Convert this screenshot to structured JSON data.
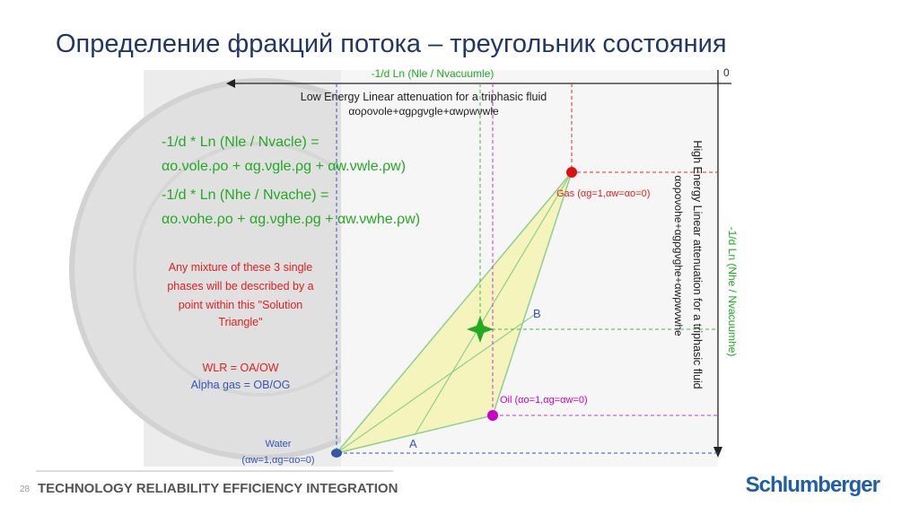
{
  "header": {
    "title": "Определение фракций потока – треугольник состояния"
  },
  "diagram": {
    "top_axis_label": "-1/d Ln (Nle / Nvacuumle)",
    "origin": "0",
    "low_energy_title": "Low Energy Linear attenuation for a triphasic fluid",
    "low_energy_formula": "αoρoνole+αgρgνgle+αwρwνwle",
    "high_energy_title": "High Energy Linear attenuation for a triphasic fluid",
    "high_energy_formula": "αoρoνohe+αgρgνghe+αwρwνwhe",
    "right_axis_label": "-1/d Ln (Nhe / Nvacuumhe)",
    "equations": [
      "-1/d * Ln (Nle / Nvacle)  =",
      "αo.νole.ρo + αg.νgle.ρg + αw.νwle.ρw)",
      "-1/d * Ln (Nhe / Nvache) =",
      "αo.νohe.ρo + αg.νghe.ρg + αw.νwhe.ρw)"
    ],
    "note": [
      "Any mixture of these 3 single",
      "phases will be described by a",
      "point within this \"Solution",
      "Triangle\""
    ],
    "ratios": [
      "WLR = OA/OW",
      "Alpha gas = OB/OG"
    ],
    "gas_label": "Gas (αg=1,αw=αo=0)",
    "oil_label": "Oil (αo=1,αg=αw=0)",
    "water_label": [
      "Water",
      "(αw=1,αg=αo=0)"
    ],
    "point_a": "A",
    "point_b": "B"
  },
  "footer": {
    "page": "28",
    "slogan": "TECHNOLOGY RELIABILITY EFFICIENCY INTEGRATION",
    "brand": "Schlumberger"
  }
}
